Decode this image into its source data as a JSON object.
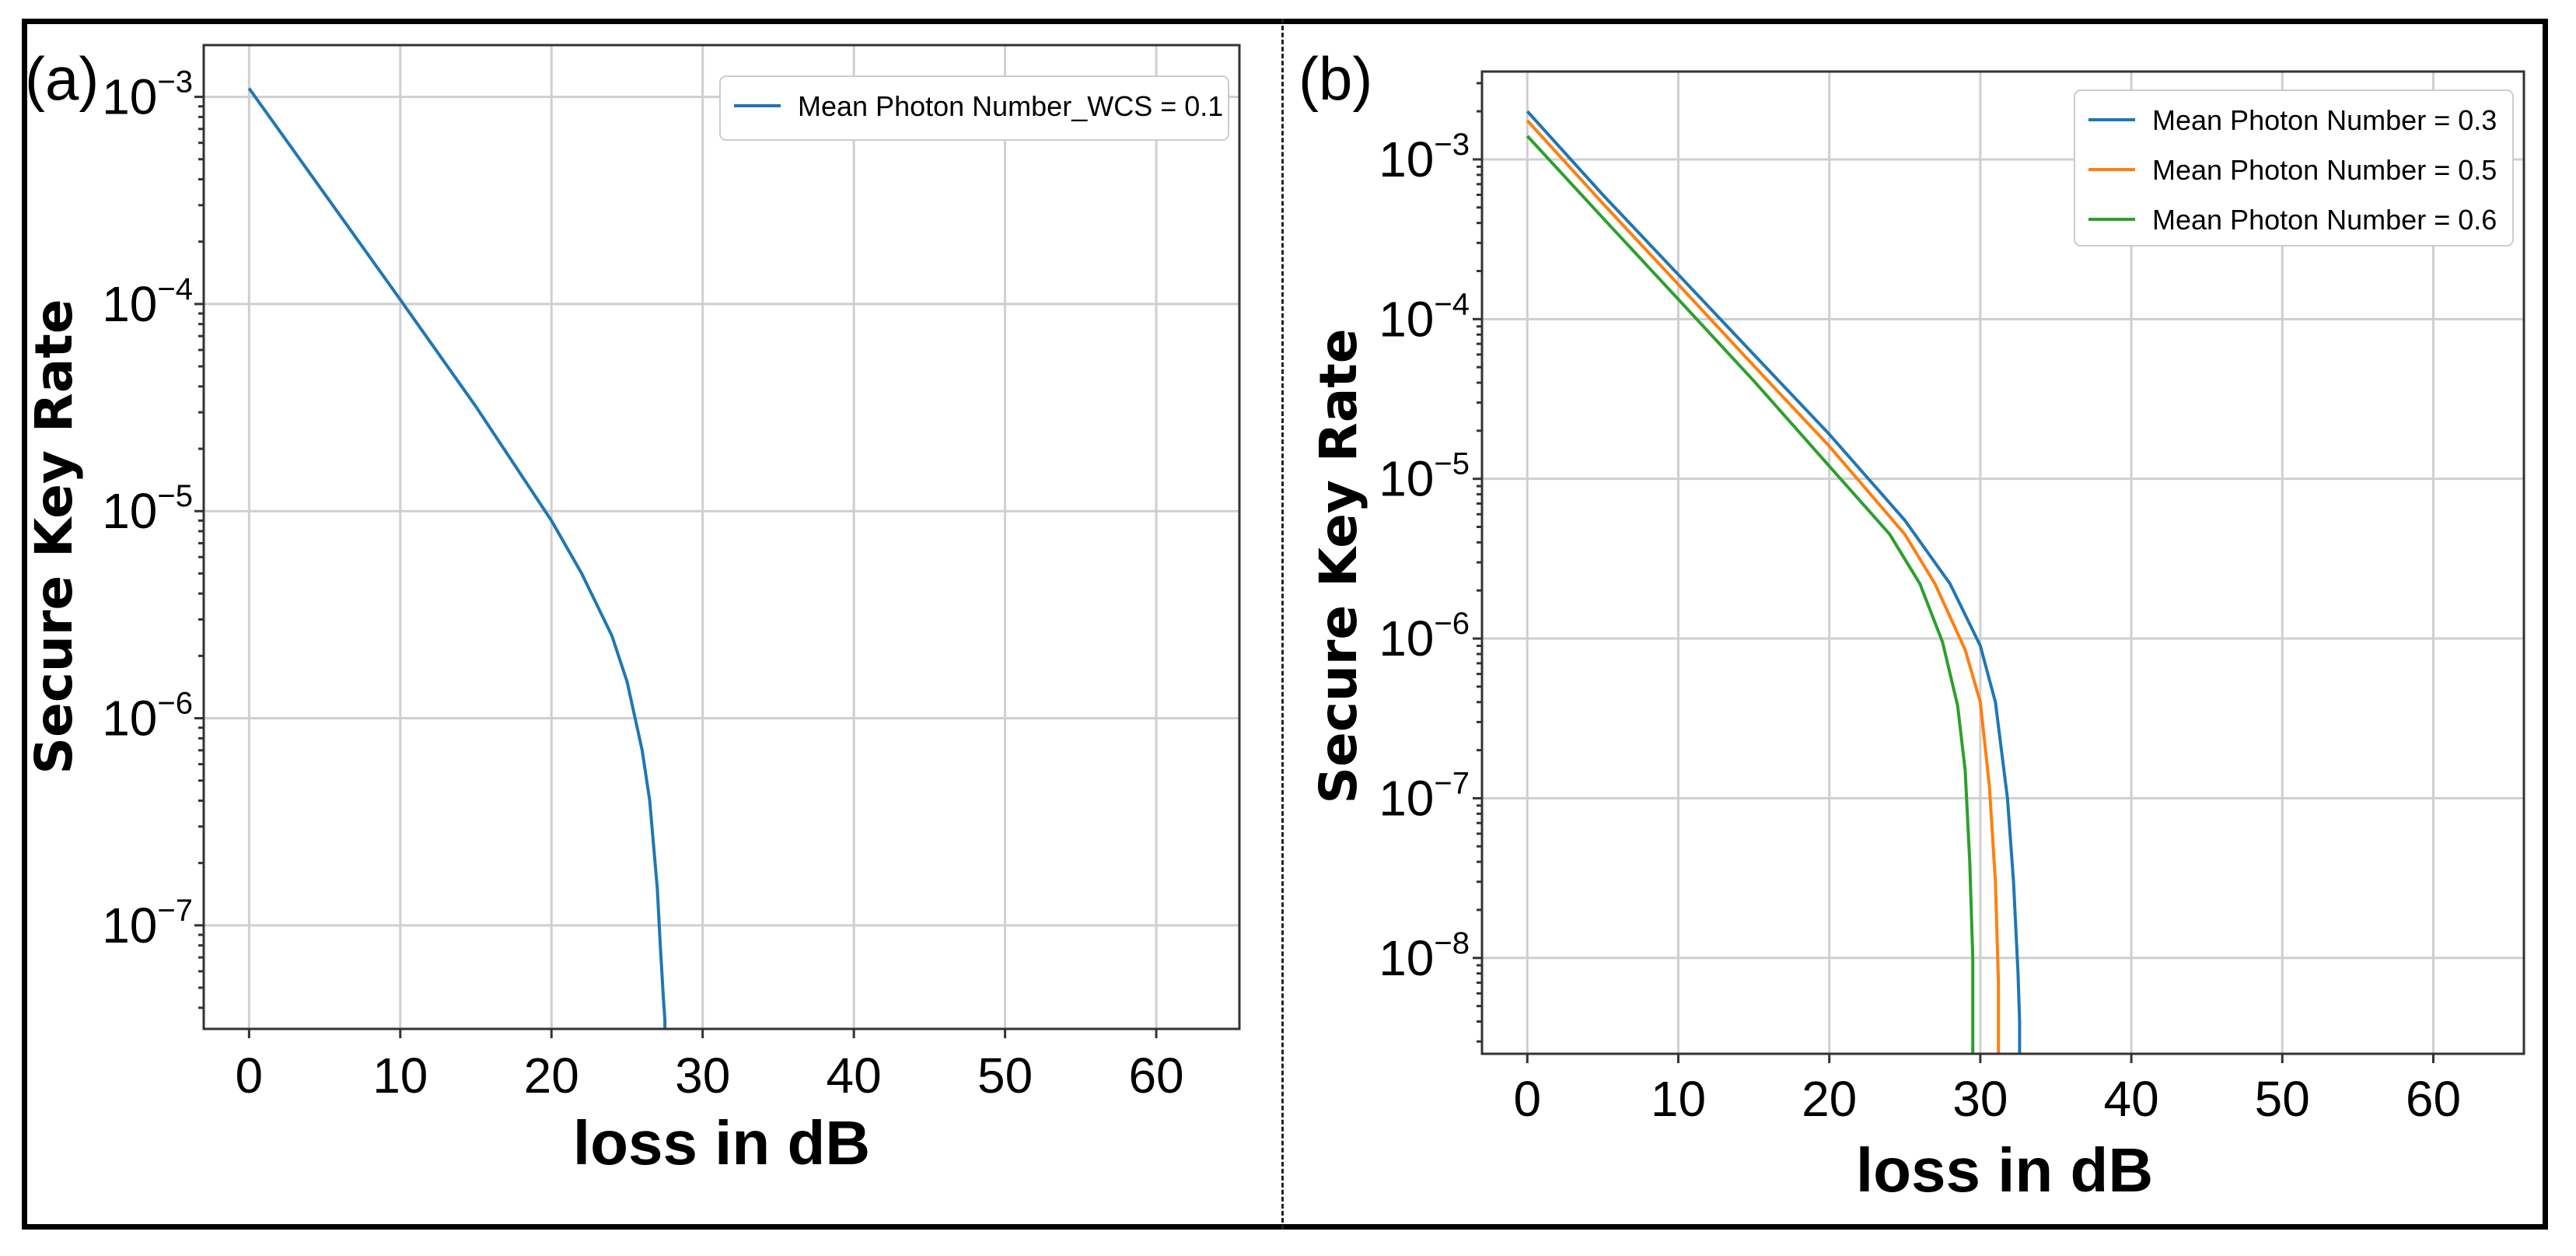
{
  "chart_data": [
    {
      "id": "a",
      "type": "line",
      "panel_label": "(a)",
      "xlabel": "loss in dB",
      "ylabel": "Secure Key Rate",
      "xlim": [
        -3,
        65.5
      ],
      "ylim_log10": [
        -7.5,
        -2.75
      ],
      "yscale": "log",
      "grid": true,
      "legend_position": "top-right",
      "x_ticks": [
        0,
        10,
        20,
        30,
        40,
        50,
        60
      ],
      "y_ticks": [
        {
          "base": "10",
          "exp": "−3",
          "log": -3
        },
        {
          "base": "10",
          "exp": "−4",
          "log": -4
        },
        {
          "base": "10",
          "exp": "−5",
          "log": -5
        },
        {
          "base": "10",
          "exp": "−6",
          "log": -6
        },
        {
          "base": "10",
          "exp": "−7",
          "log": -7
        }
      ],
      "series": [
        {
          "name": "Mean Photon Number_WCS = 0.1",
          "color": "#1f77b4",
          "x": [
            0,
            5,
            10,
            15,
            20,
            22,
            24,
            25,
            26,
            26.5,
            27,
            27.2,
            27.4,
            27.5,
            27.5
          ],
          "y": [
            0.0011,
            0.00034,
            0.000105,
            3.2e-05,
            9e-06,
            5e-06,
            2.5e-06,
            1.5e-06,
            7e-07,
            4e-07,
            1.5e-07,
            8e-08,
            4.5e-08,
            3.5e-08,
            3.1e-08
          ]
        }
      ]
    },
    {
      "id": "b",
      "type": "line",
      "panel_label": "(b)",
      "xlabel": "loss in dB",
      "ylabel": "Secure Key Rate",
      "xlim": [
        -3,
        66
      ],
      "ylim_log10": [
        -8.6,
        -2.45
      ],
      "yscale": "log",
      "grid": true,
      "legend_position": "top-right",
      "x_ticks": [
        0,
        10,
        20,
        30,
        40,
        50,
        60
      ],
      "y_ticks": [
        {
          "base": "10",
          "exp": "−3",
          "log": -3
        },
        {
          "base": "10",
          "exp": "−4",
          "log": -4
        },
        {
          "base": "10",
          "exp": "−5",
          "log": -5
        },
        {
          "base": "10",
          "exp": "−6",
          "log": -6
        },
        {
          "base": "10",
          "exp": "−7",
          "log": -7
        },
        {
          "base": "10",
          "exp": "−8",
          "log": -8
        }
      ],
      "series": [
        {
          "name": "Mean Photon Number = 0.3",
          "color": "#1f77b4",
          "x": [
            0,
            5,
            10,
            15,
            20,
            25,
            28,
            30,
            31,
            31.8,
            32.2,
            32.5,
            32.6,
            32.6
          ],
          "y": [
            0.002,
            0.0006,
            0.00019,
            6e-05,
            1.9e-05,
            5.5e-06,
            2.2e-06,
            9e-07,
            4e-07,
            1e-07,
            3e-08,
            8e-09,
            4e-09,
            2.5e-09
          ]
        },
        {
          "name": "Mean Photon Number = 0.5",
          "color": "#ff7f0e",
          "x": [
            0,
            5,
            10,
            15,
            20,
            25,
            27,
            29,
            30,
            30.6,
            31,
            31.2,
            31.2
          ],
          "y": [
            0.00175,
            0.00053,
            0.000165,
            5.1e-05,
            1.6e-05,
            4.5e-06,
            2.2e-06,
            8.5e-07,
            4e-07,
            1.2e-07,
            3e-08,
            7e-09,
            2.5e-09
          ]
        },
        {
          "name": "Mean Photon Number = 0.6",
          "color": "#2ca02c",
          "x": [
            0,
            5,
            10,
            15,
            20,
            24,
            26,
            27.5,
            28.5,
            29,
            29.3,
            29.5,
            29.5
          ],
          "y": [
            0.0014,
            0.00043,
            0.000133,
            4.1e-05,
            1.2e-05,
            4.5e-06,
            2.2e-06,
            9.5e-07,
            3.8e-07,
            1.5e-07,
            4e-08,
            1e-08,
            2.5e-09
          ]
        }
      ]
    }
  ]
}
